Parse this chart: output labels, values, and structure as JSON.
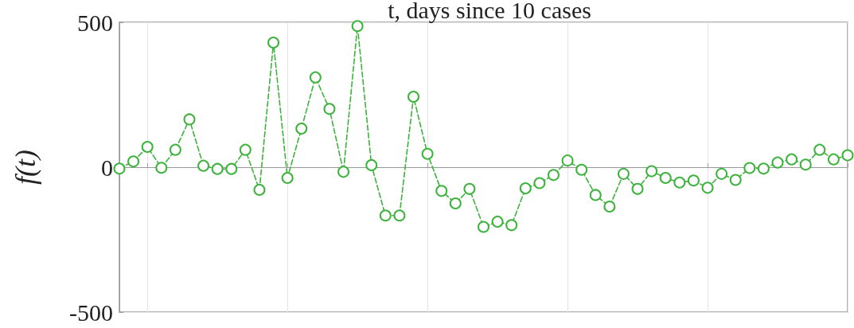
{
  "chart_data": {
    "type": "line",
    "title": "t, days since 10 cases",
    "ylabel": "f(t)",
    "categories": [
      null,
      null,
      null,
      null,
      null,
      null,
      null,
      null,
      null,
      null,
      null,
      null,
      null,
      null,
      null,
      null,
      null,
      null,
      null,
      null,
      null,
      null,
      null,
      null,
      null,
      null,
      null,
      null,
      null,
      null,
      null,
      null,
      null,
      null,
      null,
      null,
      null,
      null,
      null,
      null,
      null,
      null,
      null,
      null,
      null,
      null,
      null,
      null,
      null,
      null,
      null,
      null,
      null
    ],
    "series": [
      {
        "color": "#3db33d",
        "values": [
          -5,
          20,
          70,
          -2,
          60,
          165,
          5,
          -6,
          -6,
          60,
          -78,
          430,
          -37,
          133,
          310,
          201,
          -16,
          487,
          7,
          -167,
          -167,
          243,
          46,
          -82,
          -125,
          -75,
          -206,
          -188,
          -200,
          -73,
          -55,
          -27,
          23,
          -9,
          -96,
          -136,
          -23,
          -75,
          -14,
          -37,
          -53,
          -46,
          -71,
          -23,
          -44,
          -3,
          -5,
          16,
          27,
          9,
          60,
          27,
          41
        ]
      }
    ],
    "ylim": [
      -500,
      500
    ],
    "yticks": [
      -500,
      0,
      500
    ],
    "grid": true,
    "marker": "circle",
    "line_style": "dashed"
  }
}
